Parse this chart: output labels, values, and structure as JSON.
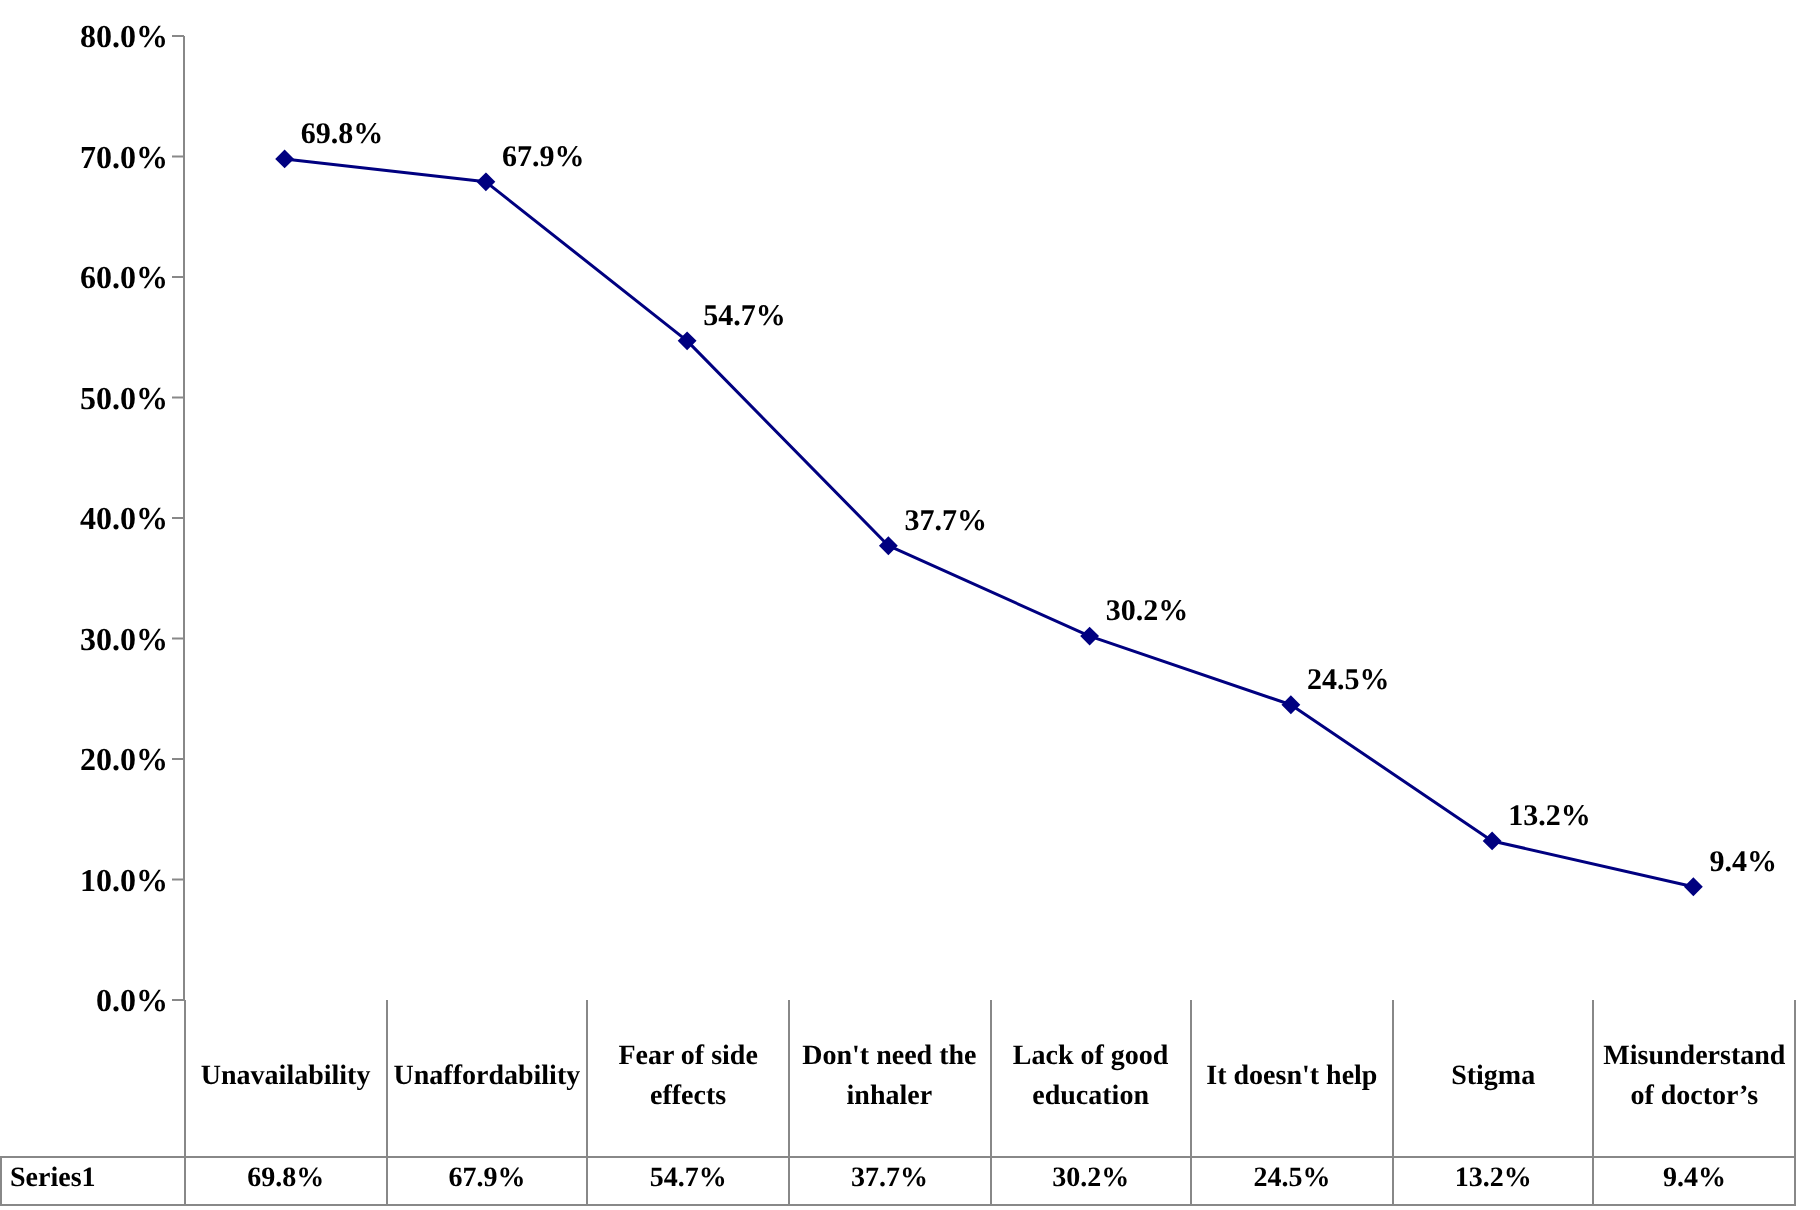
{
  "chart_data": {
    "type": "line",
    "categories": [
      "Unavailability",
      "Unaffordability",
      "Fear of side effects",
      "Don't need the inhaler",
      "Lack of good education",
      "It doesn't help",
      "Stigma",
      "Misunderstand of doctor’s"
    ],
    "series": [
      {
        "name": "Series1",
        "color": "#000080",
        "values": [
          69.8,
          67.9,
          54.7,
          37.7,
          30.2,
          24.5,
          13.2,
          9.4
        ],
        "value_labels": [
          "69.8%",
          "67.9%",
          "54.7%",
          "37.7%",
          "30.2%",
          "24.5%",
          "13.2%",
          "9.4%"
        ]
      }
    ],
    "ylim": [
      0,
      80
    ],
    "yticks": [
      {
        "value": 0,
        "label": "0.0%"
      },
      {
        "value": 10,
        "label": "10.0%"
      },
      {
        "value": 20,
        "label": "20.0%"
      },
      {
        "value": 30,
        "label": "30.0%"
      },
      {
        "value": 40,
        "label": "40.0%"
      },
      {
        "value": 50,
        "label": "50.0%"
      },
      {
        "value": 60,
        "label": "60.0%"
      },
      {
        "value": 70,
        "label": "70.0%"
      },
      {
        "value": 80,
        "label": "80.0%"
      }
    ],
    "grid": false,
    "marker": "diamond",
    "line_style": "solid"
  }
}
